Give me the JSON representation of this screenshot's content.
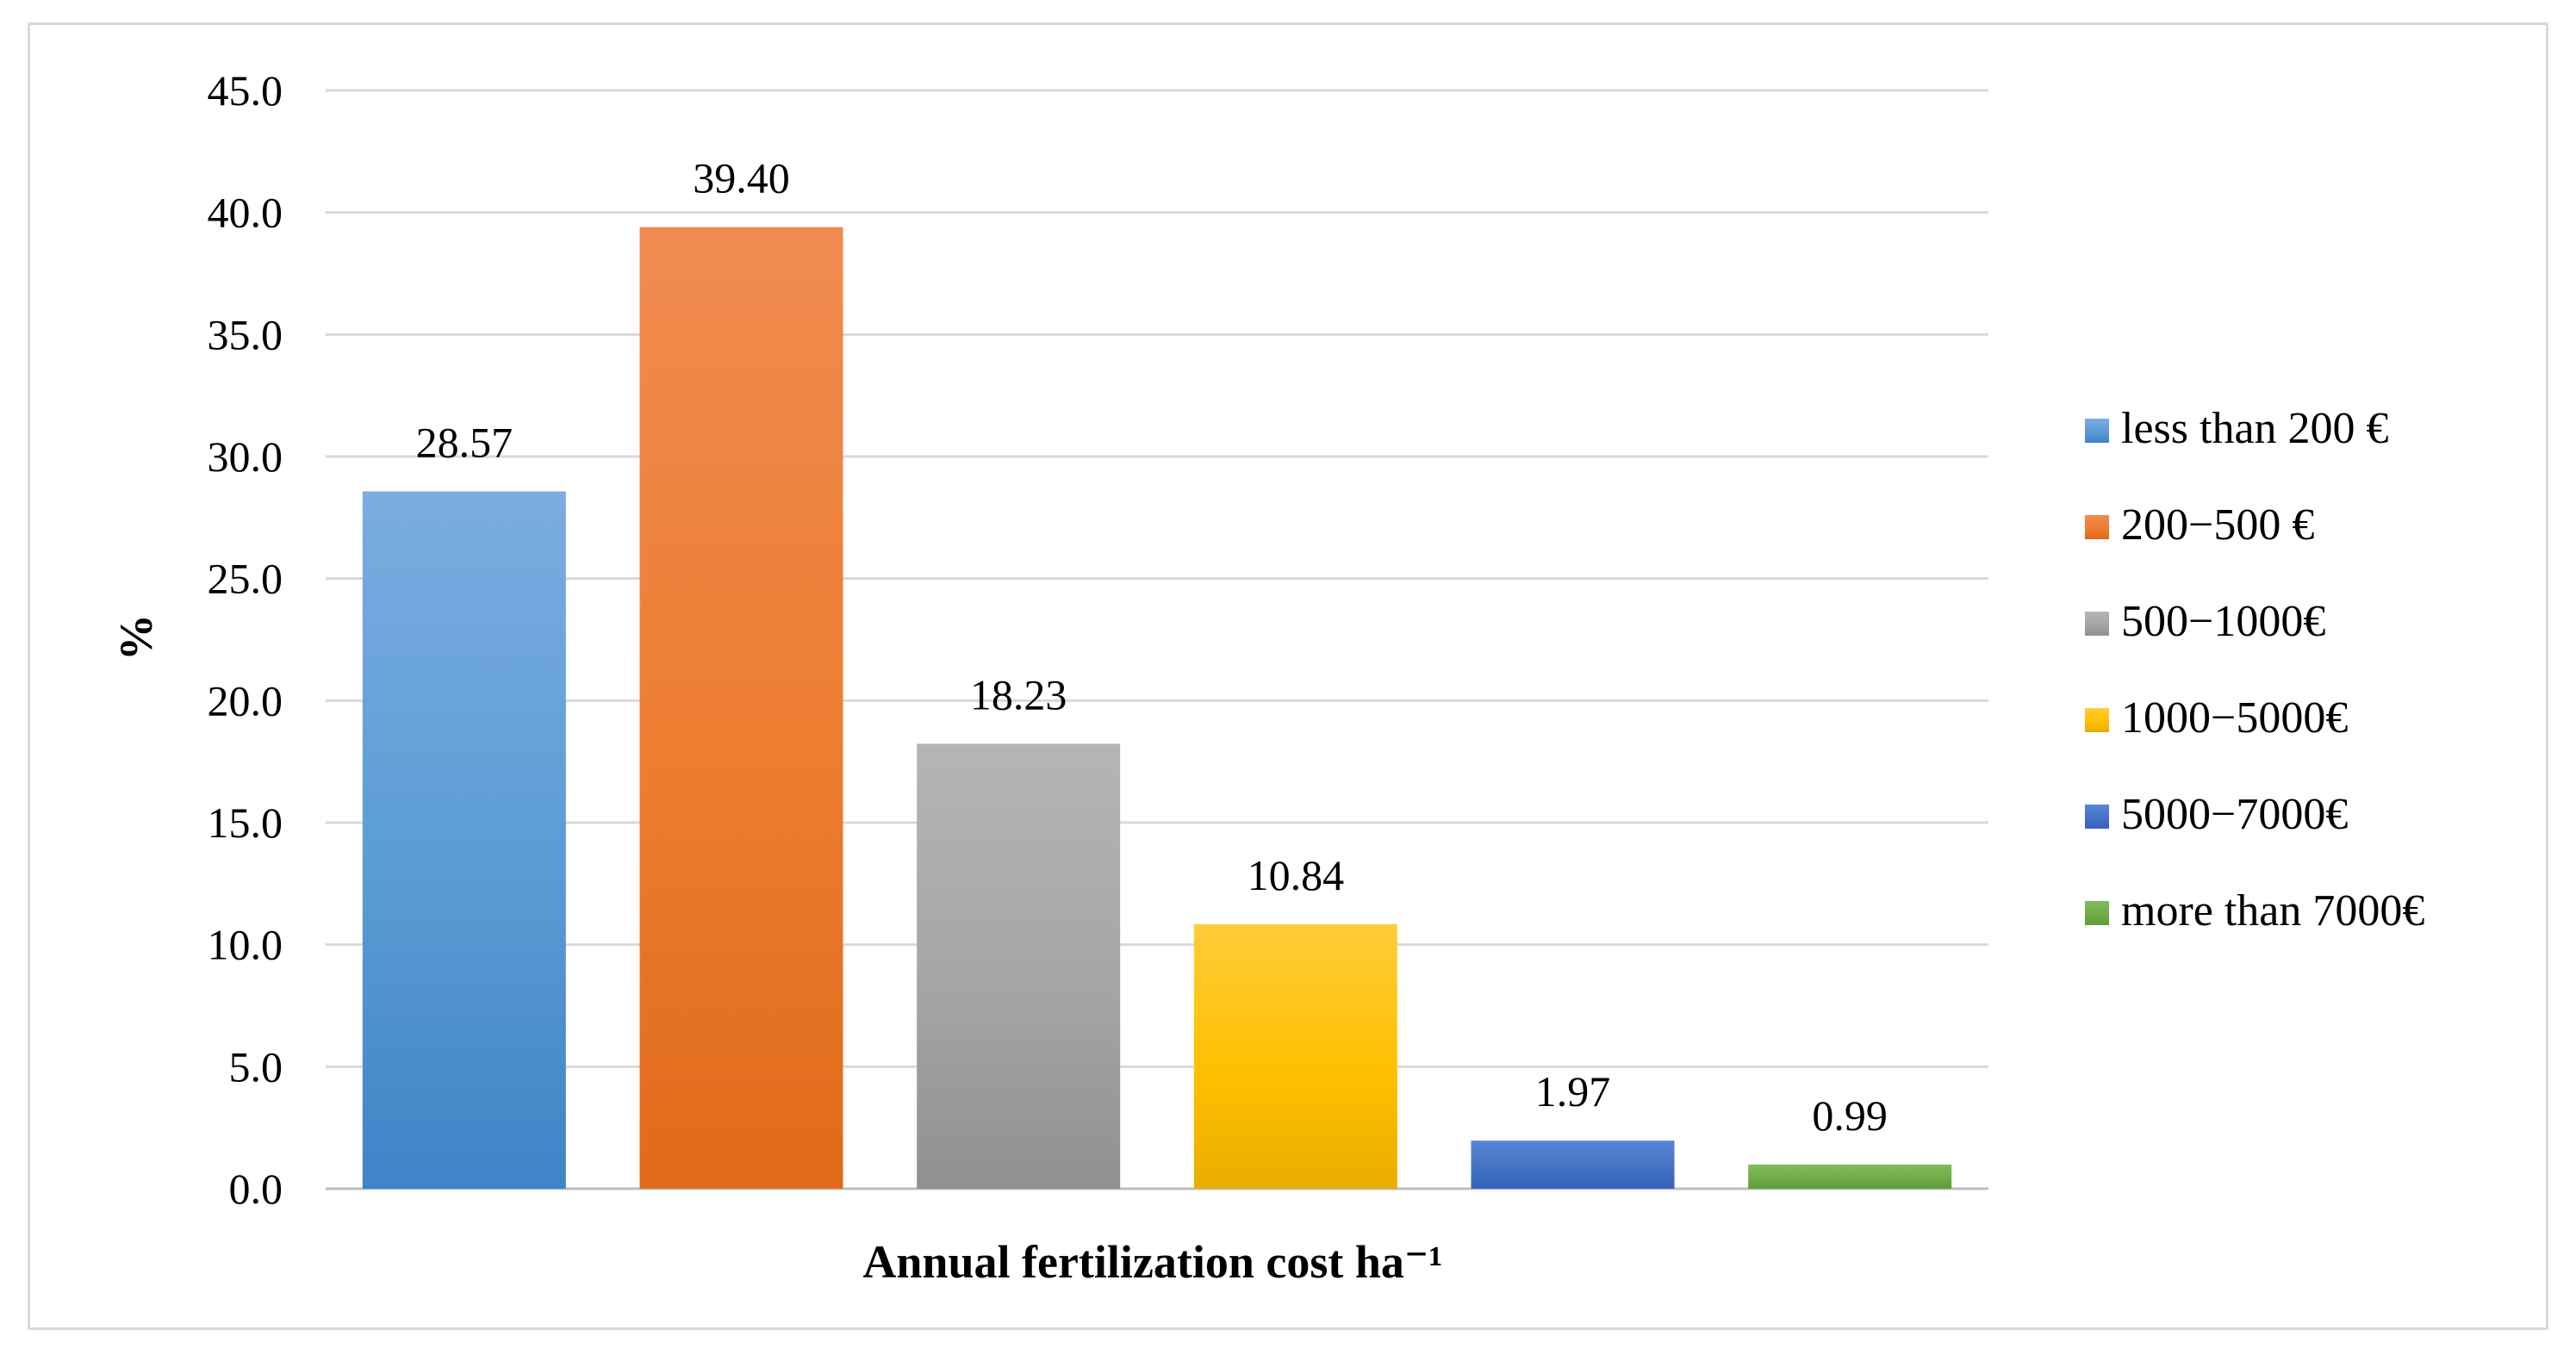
{
  "chart_data": {
    "type": "bar",
    "title": "",
    "xlabel": "Annual fertilization cost ha⁻¹",
    "ylabel": "%",
    "ylim": [
      0,
      45
    ],
    "ytick_step": 5,
    "ytick_labels": [
      "0.0",
      "5.0",
      "10.0",
      "15.0",
      "20.0",
      "25.0",
      "30.0",
      "35.0",
      "40.0",
      "45.0"
    ],
    "grid": true,
    "legend_position": "right",
    "categories": [
      "less than 200 €",
      "200−500 €",
      "500−1000€",
      "1000−5000€",
      "5000−7000€",
      "more than 7000€"
    ],
    "values": [
      28.57,
      39.4,
      18.23,
      10.84,
      1.97,
      0.99
    ],
    "value_labels": [
      "28.57",
      "39.40",
      "18.23",
      "10.84",
      "1.97",
      "0.99"
    ],
    "colors": [
      "#5b9bd5",
      "#ed7d31",
      "#a5a5a5",
      "#ffc000",
      "#4472c4",
      "#70ad47"
    ],
    "colors_light": [
      "#7aade0",
      "#f08b50",
      "#b5b5b5",
      "#ffcc3a",
      "#5a86d4",
      "#82bb5c"
    ],
    "colors_dark": [
      "#3f84c6",
      "#e06a1a",
      "#909090",
      "#e9ad00",
      "#3463bd",
      "#5f9c3a"
    ]
  }
}
